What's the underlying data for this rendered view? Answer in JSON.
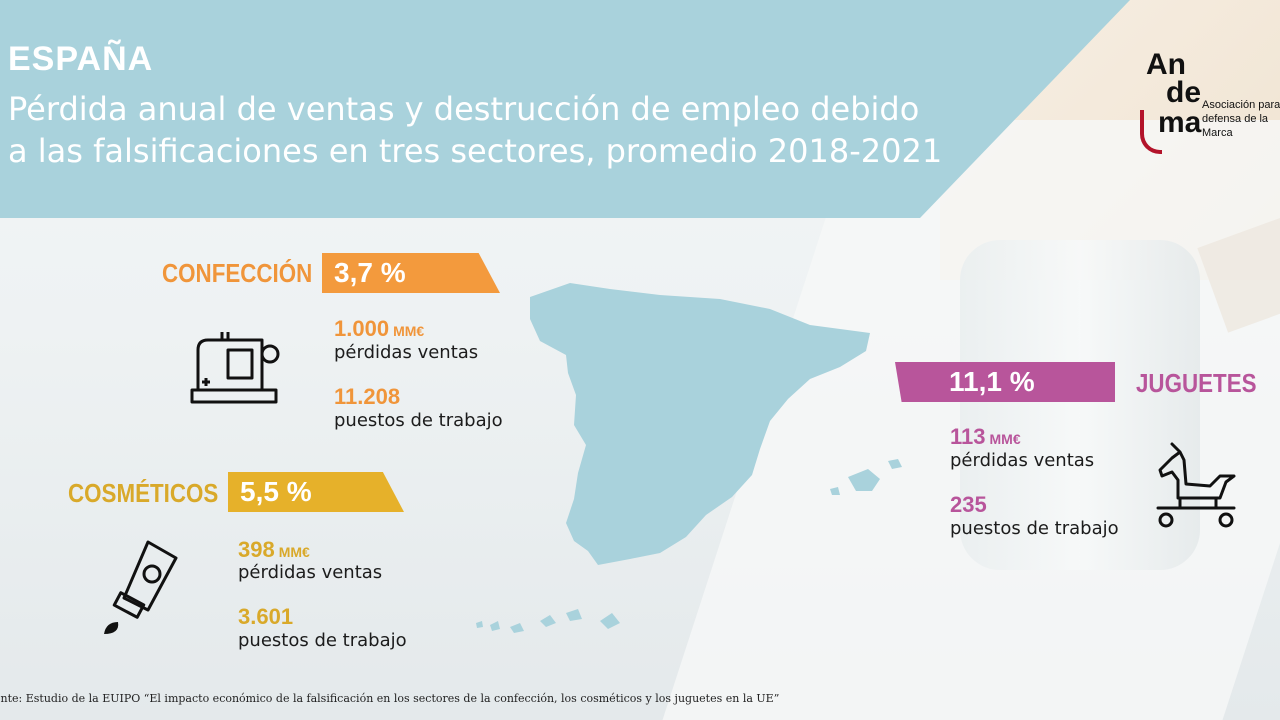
{
  "header": {
    "country": "ESPAÑA",
    "subtitle": "Pérdida anual de ventas y destrucción de empleo debido a las falsificaciones en tres sectores, promedio 2018-2021"
  },
  "logo": {
    "line1": "An",
    "line2": "de",
    "line3": "ma",
    "text": "Asociación para la defensa de la Marca"
  },
  "sectors": {
    "confeccion": {
      "label": "CONFECCIÓN",
      "percent": "3,7 %",
      "sales": "1.000",
      "sales_unit": "MM€",
      "sales_label": "pérdidas ventas",
      "jobs": "11.208",
      "jobs_label": "puestos de trabajo",
      "color": "#f39a3d",
      "icon": "sewing-machine-icon"
    },
    "cosmeticos": {
      "label": "COSMÉTICOS",
      "percent": "5,5 %",
      "sales": "398",
      "sales_unit": "MM€",
      "sales_label": "pérdidas ventas",
      "jobs": "3.601",
      "jobs_label": "puestos de trabajo",
      "color": "#e6b12a",
      "icon": "cream-tube-icon"
    },
    "juguetes": {
      "label": "JUGUETES",
      "percent": "11,1 %",
      "sales": "113",
      "sales_unit": "MM€",
      "sales_label": "pérdidas ventas",
      "jobs": "235",
      "jobs_label": "puestos de trabajo",
      "color": "#b8559b",
      "icon": "rocking-horse-icon"
    }
  },
  "map": {
    "icon": "spain-map-icon",
    "color": "#a9d2dc"
  },
  "footer": {
    "source": "ente: Estudio de la EUIPO “El impacto económico de la falsificación en los sectores de la confección, los cosméticos y los juguetes en la UE”"
  }
}
